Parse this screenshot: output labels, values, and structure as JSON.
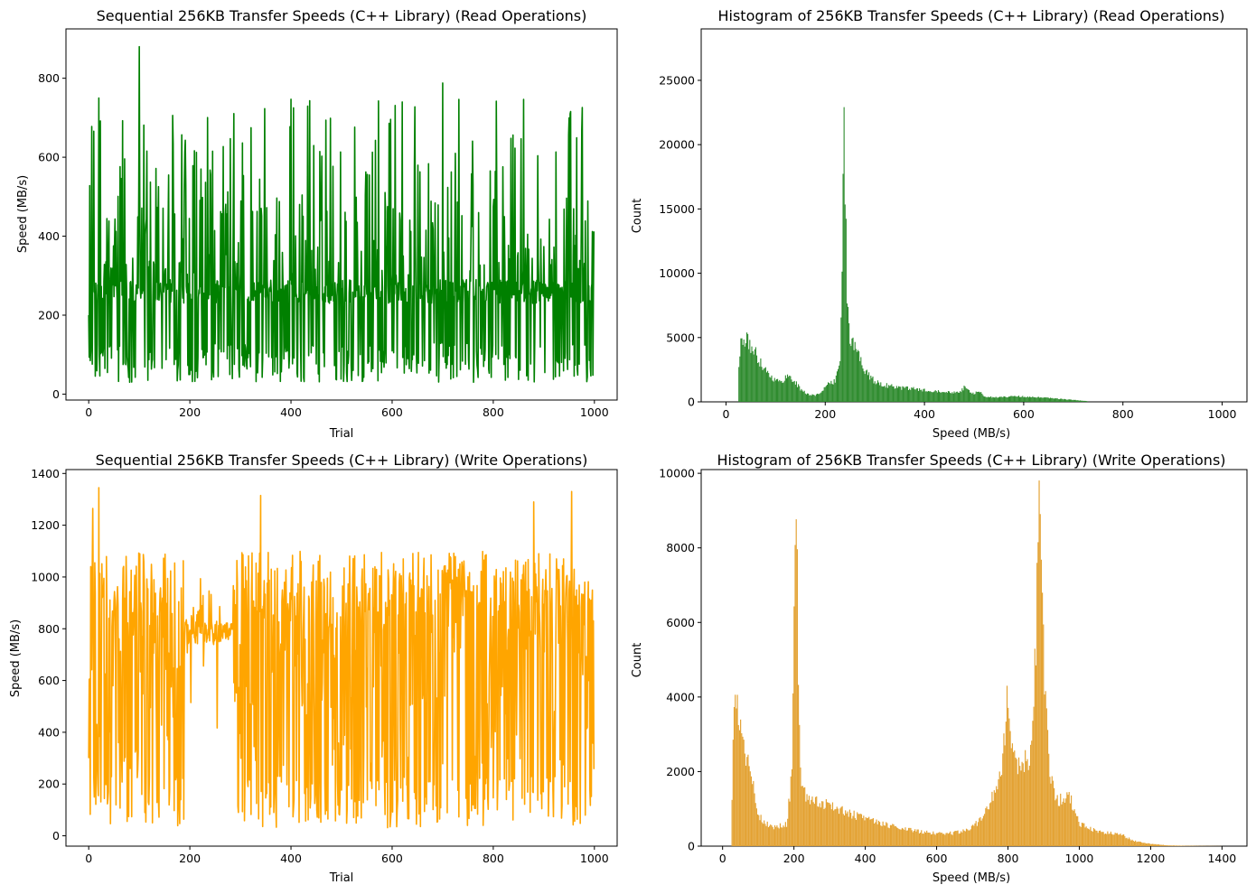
{
  "chart_data": [
    {
      "id": "read_line",
      "type": "line",
      "title": "Sequential 256KB Transfer Speeds (C++ Library) (Read Operations)",
      "xlabel": "Trial",
      "ylabel": "Speed (MB/s)",
      "color": "#008000",
      "xlim": [
        -45,
        1045
      ],
      "ylim": [
        -15,
        925
      ],
      "xticks": [
        0,
        200,
        400,
        600,
        800,
        1000
      ],
      "yticks": [
        0,
        200,
        400,
        600,
        800
      ],
      "grid": false,
      "n_points": 1000,
      "summary": {
        "typical_range": [
          30,
          750
        ],
        "peak": {
          "x": 100,
          "y": 880
        },
        "baseline": 250
      }
    },
    {
      "id": "read_hist",
      "type": "bar",
      "title": "Histogram of 256KB Transfer Speeds (C++ Library) (Read Operations)",
      "xlabel": "Speed (MB/s)",
      "ylabel": "Count",
      "color": "#2e8b2e",
      "xlim": [
        -50,
        1050
      ],
      "ylim": [
        0,
        29000
      ],
      "xticks": [
        0,
        200,
        400,
        600,
        800,
        1000
      ],
      "yticks": [
        0,
        5000,
        10000,
        15000,
        20000,
        25000
      ],
      "grid": false,
      "x": [
        25,
        30,
        40,
        50,
        60,
        70,
        80,
        90,
        100,
        110,
        120,
        130,
        140,
        150,
        160,
        170,
        180,
        190,
        200,
        210,
        220,
        230,
        235,
        238,
        240,
        245,
        250,
        260,
        270,
        280,
        290,
        300,
        320,
        350,
        380,
        400,
        430,
        460,
        470,
        480,
        500,
        510,
        520,
        550,
        580,
        600,
        650,
        700,
        730
      ],
      "values": [
        2500,
        4500,
        4800,
        4400,
        3700,
        3100,
        2500,
        2000,
        1700,
        1500,
        1900,
        2000,
        1500,
        1000,
        700,
        550,
        500,
        700,
        1200,
        1400,
        1600,
        3500,
        14000,
        21000,
        17000,
        7000,
        4800,
        4300,
        3400,
        2500,
        1900,
        1600,
        1300,
        1100,
        1000,
        900,
        850,
        750,
        750,
        1100,
        600,
        850,
        400,
        350,
        450,
        400,
        300,
        150,
        50
      ]
    },
    {
      "id": "write_line",
      "type": "line",
      "title": "Sequential 256KB Transfer Speeds (C++ Library) (Write Operations)",
      "xlabel": "Trial",
      "ylabel": "Speed (MB/s)",
      "color": "#ffa500",
      "xlim": [
        -45,
        1045
      ],
      "ylim": [
        -40,
        1415
      ],
      "xticks": [
        0,
        200,
        400,
        600,
        800,
        1000
      ],
      "yticks": [
        0,
        200,
        400,
        600,
        800,
        1000,
        1200,
        1400
      ],
      "grid": false,
      "n_points": 1000,
      "summary": {
        "typical_range": [
          30,
          1150
        ],
        "peak": {
          "x": 20,
          "y": 1345
        },
        "plateau": {
          "x": [
            200,
            280
          ],
          "y": 800
        }
      }
    },
    {
      "id": "write_hist",
      "type": "bar",
      "title": "Histogram of 256KB Transfer Speeds (C++ Library) (Write Operations)",
      "xlabel": "Speed (MB/s)",
      "ylabel": "Count",
      "color": "#e3a233",
      "xlim": [
        -60,
        1470
      ],
      "ylim": [
        0,
        10100
      ],
      "xticks": [
        0,
        200,
        400,
        600,
        800,
        1000,
        1200,
        1400
      ],
      "yticks": [
        0,
        2000,
        4000,
        6000,
        8000,
        10000
      ],
      "grid": false,
      "x": [
        25,
        30,
        40,
        50,
        60,
        70,
        80,
        90,
        100,
        110,
        120,
        130,
        150,
        180,
        195,
        200,
        205,
        210,
        215,
        220,
        230,
        250,
        300,
        350,
        400,
        450,
        500,
        550,
        600,
        650,
        700,
        720,
        740,
        760,
        780,
        790,
        795,
        800,
        805,
        810,
        820,
        840,
        850,
        860,
        870,
        880,
        885,
        890,
        895,
        900,
        910,
        920,
        940,
        960,
        970,
        980,
        1000,
        1050,
        1100,
        1120,
        1150,
        1200,
        1250,
        1300,
        1350,
        1400
      ],
      "values": [
        500,
        3200,
        4000,
        3500,
        2600,
        2200,
        1800,
        1400,
        900,
        700,
        600,
        550,
        500,
        600,
        2000,
        5500,
        8500,
        7000,
        3000,
        1700,
        1400,
        1300,
        1100,
        900,
        750,
        600,
        500,
        400,
        350,
        350,
        500,
        700,
        1000,
        1400,
        1900,
        2800,
        3800,
        4000,
        3600,
        3000,
        2200,
        2100,
        2300,
        2400,
        3200,
        6000,
        8500,
        9200,
        8000,
        5200,
        3000,
        1800,
        1200,
        1300,
        1500,
        1100,
        600,
        400,
        350,
        300,
        150,
        60,
        20,
        10,
        5,
        2
      ]
    }
  ]
}
